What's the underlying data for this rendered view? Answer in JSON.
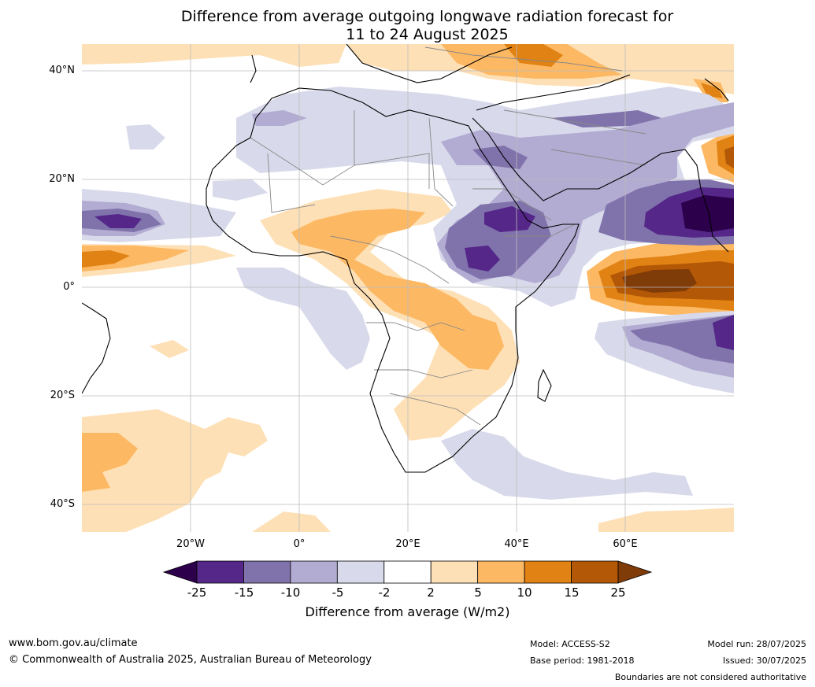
{
  "title": {
    "line1": "Difference from average outgoing longwave radiation forecast for",
    "line2": "11 to 24 August 2025"
  },
  "axes": {
    "lat_labels": [
      "40°N",
      "20°N",
      "0°",
      "20°S",
      "40°S"
    ],
    "lon_labels": [
      "20°W",
      "0°",
      "20°E",
      "40°E",
      "60°E"
    ]
  },
  "colorbar": {
    "ticks": [
      "-25",
      "-15",
      "-10",
      "-5",
      "-2",
      "2",
      "5",
      "10",
      "15",
      "25"
    ],
    "label": "Difference from average (W/m2)",
    "colors": [
      "#2d004b",
      "#542788",
      "#8073ac",
      "#b2abd2",
      "#d8daeb",
      "#ffffff",
      "#fee0b6",
      "#fdb863",
      "#e08214",
      "#b35806",
      "#7f3b08"
    ]
  },
  "footer": {
    "website": "www.bom.gov.au/climate",
    "copyright": "© Commonwealth of Australia 2025, Australian Bureau of Meteorology",
    "model": "Model: ACCESS-S2",
    "base_period": "Base period: 1981-2018",
    "model_run": "Model run: 28/07/2025",
    "issued": "Issued: 30/07/2025",
    "disclaimer": "Boundaries are not considered authoritative"
  }
}
